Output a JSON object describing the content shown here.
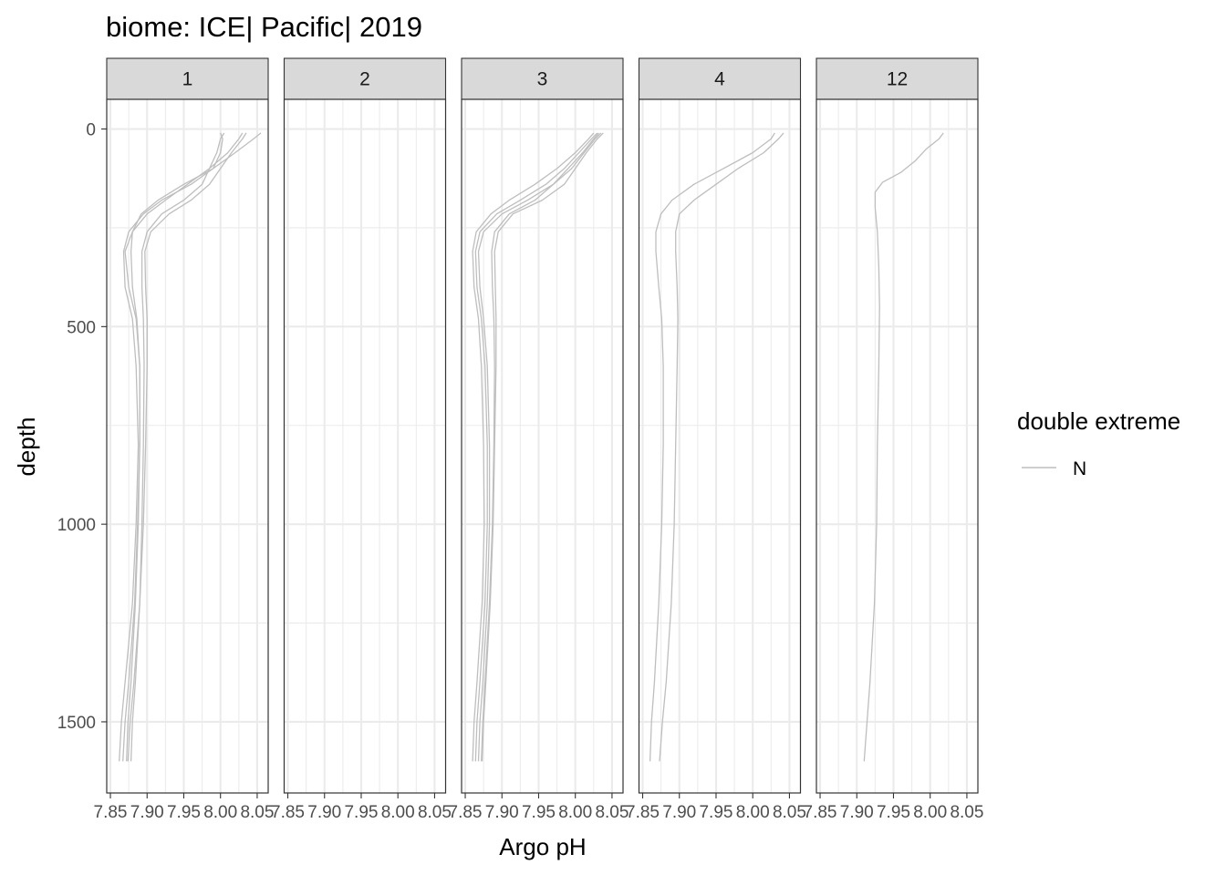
{
  "chart_data": {
    "type": "line",
    "title": "biome: ICE| Pacific| 2019",
    "xlabel": "Argo pH",
    "ylabel": "depth",
    "xlim": [
      7.845,
      8.065
    ],
    "ylim": [
      -75,
      1680
    ],
    "y_reversed": true,
    "x_ticks": [
      7.85,
      7.9,
      7.95,
      8.0,
      8.05
    ],
    "x_tick_labels": [
      "7.85",
      "7.90",
      "7.95",
      "8.00",
      "8.05"
    ],
    "y_ticks": [
      0,
      500,
      1000,
      1500
    ],
    "y_tick_labels": [
      "0",
      "500",
      "1000",
      "1500"
    ],
    "grid": true,
    "line_color": "#bebebe",
    "legend": {
      "title": "double extreme",
      "position": "right",
      "entries": [
        {
          "label": "N",
          "color": "#bebebe"
        }
      ]
    },
    "panels": [
      {
        "label": "1",
        "series": [
          {
            "x": [
              8.0,
              8.003,
              8.0,
              7.99,
              7.96,
              7.92,
              7.895,
              7.875,
              7.868,
              7.87,
              7.88,
              7.885,
              7.888,
              7.885,
              7.88,
              7.87,
              7.865,
              7.862
            ],
            "y": [
              10,
              25,
              60,
              100,
              140,
              180,
              215,
              260,
              310,
              400,
              480,
              600,
              800,
              1000,
              1200,
              1400,
              1500,
              1600
            ]
          },
          {
            "x": [
              8.03,
              8.025,
              8.01,
              7.985,
              7.955,
              7.925,
              7.9,
              7.88,
              7.87,
              7.875,
              7.885,
              7.89,
              7.89,
              7.887,
              7.883,
              7.875,
              7.87,
              7.867
            ],
            "y": [
              10,
              25,
              60,
              100,
              140,
              180,
              215,
              260,
              310,
              400,
              480,
              600,
              800,
              1000,
              1200,
              1400,
              1500,
              1600
            ]
          },
          {
            "x": [
              8.035,
              8.03,
              8.015,
              8.0,
              7.985,
              7.96,
              7.93,
              7.905,
              7.897,
              7.898,
              7.9,
              7.9,
              7.898,
              7.895,
              7.89,
              7.882,
              7.877,
              7.874
            ],
            "y": [
              10,
              25,
              60,
              100,
              140,
              180,
              215,
              260,
              310,
              400,
              480,
              600,
              800,
              1000,
              1200,
              1400,
              1500,
              1600
            ]
          },
          {
            "x": [
              8.055,
              8.045,
              8.02,
              7.99,
              7.95,
              7.915,
              7.892,
              7.88,
              7.878,
              7.88,
              7.886,
              7.89,
              7.89,
              7.888,
              7.884,
              7.878,
              7.874,
              7.872
            ],
            "y": [
              10,
              25,
              60,
              100,
              140,
              180,
              215,
              260,
              310,
              400,
              480,
              600,
              800,
              1000,
              1200,
              1400,
              1500,
              1600
            ]
          },
          {
            "x": [
              8.005,
              8.0,
              7.995,
              7.985,
              7.975,
              7.95,
              7.92,
              7.9,
              7.893,
              7.893,
              7.895,
              7.896,
              7.895,
              7.893,
              7.89,
              7.884,
              7.88,
              7.878
            ],
            "y": [
              10,
              25,
              60,
              100,
              140,
              180,
              215,
              260,
              310,
              400,
              480,
              600,
              800,
              1000,
              1200,
              1400,
              1500,
              1600
            ]
          }
        ]
      },
      {
        "label": "2",
        "series": []
      },
      {
        "label": "3",
        "series": [
          {
            "x": [
              8.025,
              8.018,
              8.0,
              7.975,
              7.945,
              7.91,
              7.885,
              7.865,
              7.86,
              7.862,
              7.868,
              7.872,
              7.875,
              7.876,
              7.873,
              7.866,
              7.862,
              7.86
            ],
            "y": [
              10,
              25,
              60,
              100,
              140,
              180,
              215,
              260,
              310,
              400,
              480,
              600,
              800,
              1000,
              1200,
              1400,
              1500,
              1600
            ]
          },
          {
            "x": [
              8.03,
              8.022,
              8.005,
              7.985,
              7.96,
              7.925,
              7.893,
              7.87,
              7.864,
              7.866,
              7.872,
              7.877,
              7.88,
              7.88,
              7.877,
              7.87,
              7.866,
              7.864
            ],
            "y": [
              10,
              25,
              60,
              100,
              140,
              180,
              215,
              260,
              310,
              400,
              480,
              600,
              800,
              1000,
              1200,
              1400,
              1500,
              1600
            ]
          },
          {
            "x": [
              8.035,
              8.027,
              8.012,
              7.995,
              7.97,
              7.935,
              7.9,
              7.875,
              7.868,
              7.87,
              7.875,
              7.88,
              7.883,
              7.883,
              7.88,
              7.874,
              7.87,
              7.868
            ],
            "y": [
              10,
              25,
              60,
              100,
              140,
              180,
              215,
              260,
              310,
              400,
              480,
              600,
              800,
              1000,
              1200,
              1400,
              1500,
              1600
            ]
          },
          {
            "x": [
              8.038,
              8.03,
              8.015,
              8.0,
              7.985,
              7.955,
              7.915,
              7.895,
              7.89,
              7.891,
              7.892,
              7.892,
              7.89,
              7.888,
              7.884,
              7.878,
              7.875,
              7.873
            ],
            "y": [
              10,
              25,
              60,
              100,
              140,
              180,
              215,
              260,
              310,
              400,
              480,
              600,
              800,
              1000,
              1200,
              1400,
              1500,
              1600
            ]
          },
          {
            "x": [
              8.032,
              8.025,
              8.01,
              7.99,
              7.97,
              7.945,
              7.91,
              7.89,
              7.886,
              7.887,
              7.889,
              7.89,
              7.889,
              7.887,
              7.883,
              7.877,
              7.874,
              7.872
            ],
            "y": [
              10,
              25,
              60,
              100,
              140,
              180,
              215,
              260,
              310,
              400,
              480,
              600,
              800,
              1000,
              1200,
              1400,
              1500,
              1600
            ]
          }
        ]
      },
      {
        "label": "4",
        "series": [
          {
            "x": [
              8.03,
              8.025,
              8.0,
              7.96,
              7.92,
              7.89,
              7.875,
              7.868,
              7.868,
              7.872,
              7.876,
              7.878,
              7.878,
              7.876,
              7.872,
              7.866,
              7.862,
              7.86
            ],
            "y": [
              10,
              25,
              60,
              100,
              140,
              180,
              215,
              260,
              310,
              400,
              480,
              600,
              800,
              1000,
              1200,
              1400,
              1500,
              1600
            ]
          },
          {
            "x": [
              8.042,
              8.035,
              8.015,
              7.98,
              7.95,
              7.92,
              7.9,
              7.895,
              7.895,
              7.897,
              7.898,
              7.897,
              7.895,
              7.893,
              7.889,
              7.882,
              7.877,
              7.873
            ],
            "y": [
              10,
              25,
              60,
              100,
              140,
              180,
              215,
              260,
              310,
              400,
              480,
              600,
              800,
              1000,
              1200,
              1400,
              1500,
              1600
            ]
          }
        ]
      },
      {
        "label": "12",
        "series": [
          {
            "x": [
              8.018,
              8.012,
              7.995,
              7.98,
              7.96,
              7.935,
              7.925,
              7.925,
              7.928,
              7.93,
              7.931,
              7.93,
              7.928,
              7.927,
              7.924,
              7.918,
              7.914,
              7.91
            ],
            "y": [
              10,
              25,
              50,
              80,
              110,
              135,
              160,
              200,
              260,
              350,
              450,
              600,
              800,
              1000,
              1200,
              1400,
              1500,
              1600
            ]
          }
        ]
      }
    ]
  }
}
